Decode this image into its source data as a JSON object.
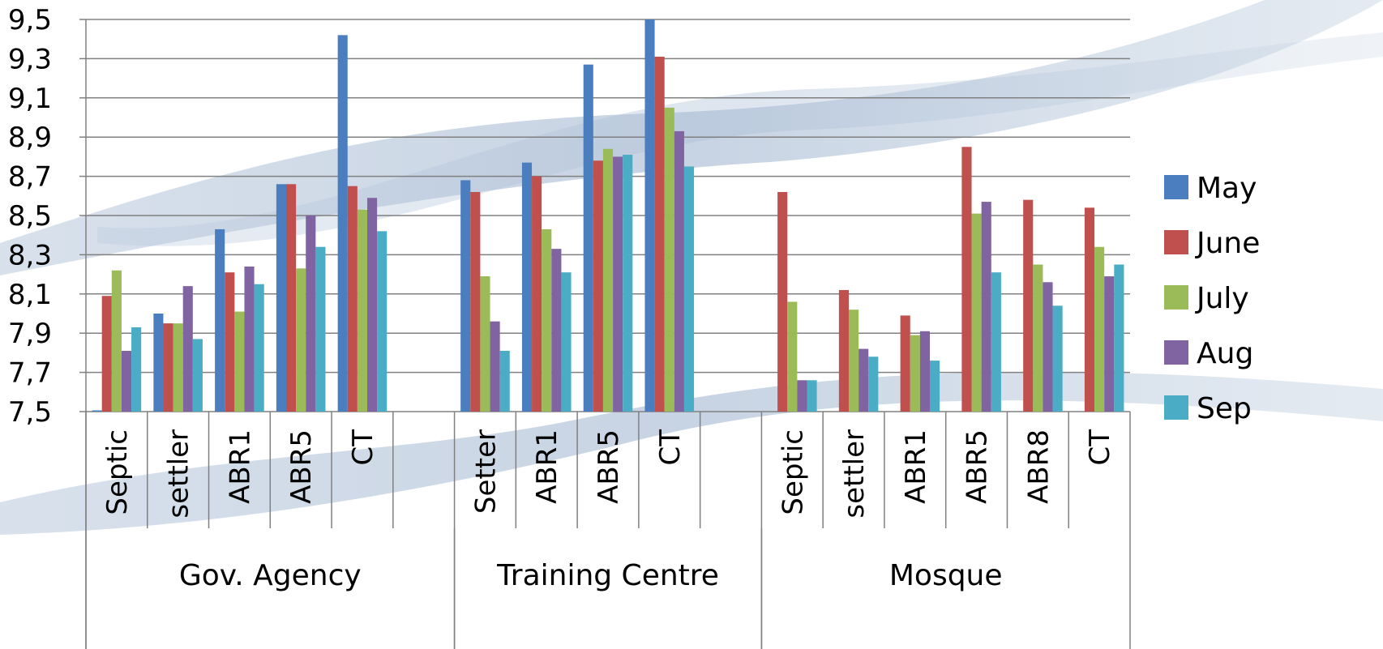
{
  "chart_data": {
    "type": "bar",
    "title": "",
    "xlabel": "",
    "ylabel": "",
    "ylim": [
      7.5,
      9.5
    ],
    "y_ticks": [
      "7,5",
      "7,7",
      "7,9",
      "8,1",
      "8,3",
      "8,5",
      "8,7",
      "8,9",
      "9,1",
      "9,3",
      "9,5"
    ],
    "grid": true,
    "legend_position": "right",
    "groups": [
      {
        "name": "Gov. Agency",
        "categories": [
          "Septic",
          "settler",
          "ABR1",
          "ABR5",
          "CT",
          ""
        ]
      },
      {
        "name": "Training Centre",
        "categories": [
          "Setter",
          "ABR1",
          "ABR5",
          "CT",
          ""
        ]
      },
      {
        "name": "Mosque",
        "categories": [
          "Septic",
          "settler",
          "ABR1",
          "ABR5",
          "ABR8",
          "CT"
        ]
      }
    ],
    "series": [
      {
        "name": "May",
        "color": "#4a7ebf",
        "values": [
          7.5,
          8.0,
          8.43,
          8.66,
          9.42,
          null,
          8.68,
          8.77,
          9.27,
          9.5,
          null,
          null,
          null,
          null,
          null,
          null,
          null
        ]
      },
      {
        "name": "June",
        "color": "#c0504d",
        "values": [
          8.09,
          7.95,
          8.21,
          8.66,
          8.65,
          null,
          8.62,
          8.7,
          8.78,
          9.31,
          null,
          8.62,
          8.12,
          7.99,
          8.85,
          8.58,
          8.54
        ]
      },
      {
        "name": "July",
        "color": "#9bbb59",
        "values": [
          8.22,
          7.95,
          8.01,
          8.23,
          8.53,
          null,
          8.19,
          8.43,
          8.84,
          9.05,
          null,
          8.06,
          8.02,
          7.89,
          8.51,
          8.25,
          8.34
        ]
      },
      {
        "name": "Aug",
        "color": "#8064a2",
        "values": [
          7.81,
          8.14,
          8.24,
          8.5,
          8.59,
          null,
          7.96,
          8.33,
          8.8,
          8.93,
          null,
          7.66,
          7.82,
          7.91,
          8.57,
          8.16,
          8.19
        ]
      },
      {
        "name": "Sep",
        "color": "#4bacc6",
        "values": [
          7.93,
          7.87,
          8.15,
          8.34,
          8.42,
          null,
          7.81,
          8.21,
          8.81,
          8.75,
          null,
          7.66,
          7.78,
          7.76,
          8.21,
          8.04,
          8.25
        ]
      }
    ]
  }
}
